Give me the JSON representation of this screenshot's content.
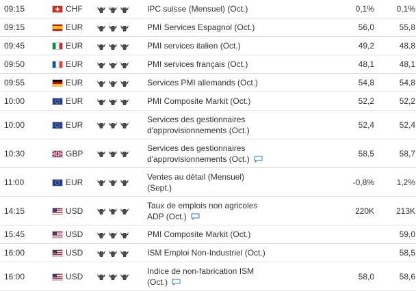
{
  "calendar": {
    "rows": [
      {
        "time": "09:15",
        "flag": "ch-flag-icon",
        "currency": "CHF",
        "importance": 3,
        "event_line1": "IPC suisse (Mensuel) (Oct.)",
        "event_line2": "",
        "comment": false,
        "actual": "0,1%",
        "forecast": "0,1%"
      },
      {
        "time": "09:15",
        "flag": "es-flag-icon",
        "currency": "EUR",
        "importance": 3,
        "event_line1": "PMI Services Espagnol (Oct.)",
        "event_line2": "",
        "comment": false,
        "actual": "56,0",
        "forecast": "55,8"
      },
      {
        "time": "09:45",
        "flag": "it-flag-icon",
        "currency": "EUR",
        "importance": 3,
        "event_line1": "PMI services italien (Oct.)",
        "event_line2": "",
        "comment": false,
        "actual": "49,2",
        "forecast": "48,8"
      },
      {
        "time": "09:50",
        "flag": "fr-flag-icon",
        "currency": "EUR",
        "importance": 3,
        "event_line1": "PMI services français (Oct.)",
        "event_line2": "",
        "comment": false,
        "actual": "48,1",
        "forecast": "48,1"
      },
      {
        "time": "09:55",
        "flag": "de-flag-icon",
        "currency": "EUR",
        "importance": 3,
        "event_line1": "Services PMI allemands (Oct.)",
        "event_line2": "",
        "comment": false,
        "actual": "54,8",
        "forecast": "54,8"
      },
      {
        "time": "10:00",
        "flag": "eu-flag-icon",
        "currency": "EUR",
        "importance": 3,
        "event_line1": "PMI Composite Markit (Oct.)",
        "event_line2": "",
        "comment": false,
        "actual": "52,2",
        "forecast": "52,2"
      },
      {
        "time": "10:00",
        "flag": "eu-flag-icon",
        "currency": "EUR",
        "importance": 3,
        "event_line1": "Services des gestionnaires",
        "event_line2": "d'approvisionnements (Oct.)",
        "comment": false,
        "actual": "52,4",
        "forecast": "52,4"
      },
      {
        "time": "10:30",
        "flag": "gb-flag-icon",
        "currency": "GBP",
        "importance": 3,
        "event_line1": "Services des gestionnaires",
        "event_line2": "d'approvisionnements (Oct.)",
        "comment": true,
        "actual": "58,5",
        "forecast": "58,7"
      },
      {
        "time": "11:00",
        "flag": "eu-flag-icon",
        "currency": "EUR",
        "importance": 3,
        "event_line1": "Ventes au détail (Mensuel)",
        "event_line2": "(Sept.)",
        "comment": false,
        "actual": "-0,8%",
        "forecast": "1,2%"
      },
      {
        "time": "14:15",
        "flag": "us-flag-icon",
        "currency": "USD",
        "importance": 3,
        "event_line1": "Taux de emplois non agricoles",
        "event_line2": "ADP (Oct.)",
        "comment": true,
        "actual": "220K",
        "forecast": "213K"
      },
      {
        "time": "15:45",
        "flag": "us-flag-icon",
        "currency": "USD",
        "importance": 3,
        "event_line1": "PMI Composite Markit (Oct.)",
        "event_line2": "",
        "comment": false,
        "actual": "",
        "forecast": "59,0"
      },
      {
        "time": "16:00",
        "flag": "us-flag-icon",
        "currency": "USD",
        "importance": 3,
        "event_line1": "ISM Emploi Non-Industriel (Oct.)",
        "event_line2": "",
        "comment": false,
        "actual": "",
        "forecast": "58,5"
      },
      {
        "time": "16:00",
        "flag": "us-flag-icon",
        "currency": "USD",
        "importance": 3,
        "event_line1": "Indice de non-fabrication ISM",
        "event_line2": "(Oct.)",
        "comment": true,
        "actual": "58,0",
        "forecast": "58,6"
      }
    ]
  }
}
